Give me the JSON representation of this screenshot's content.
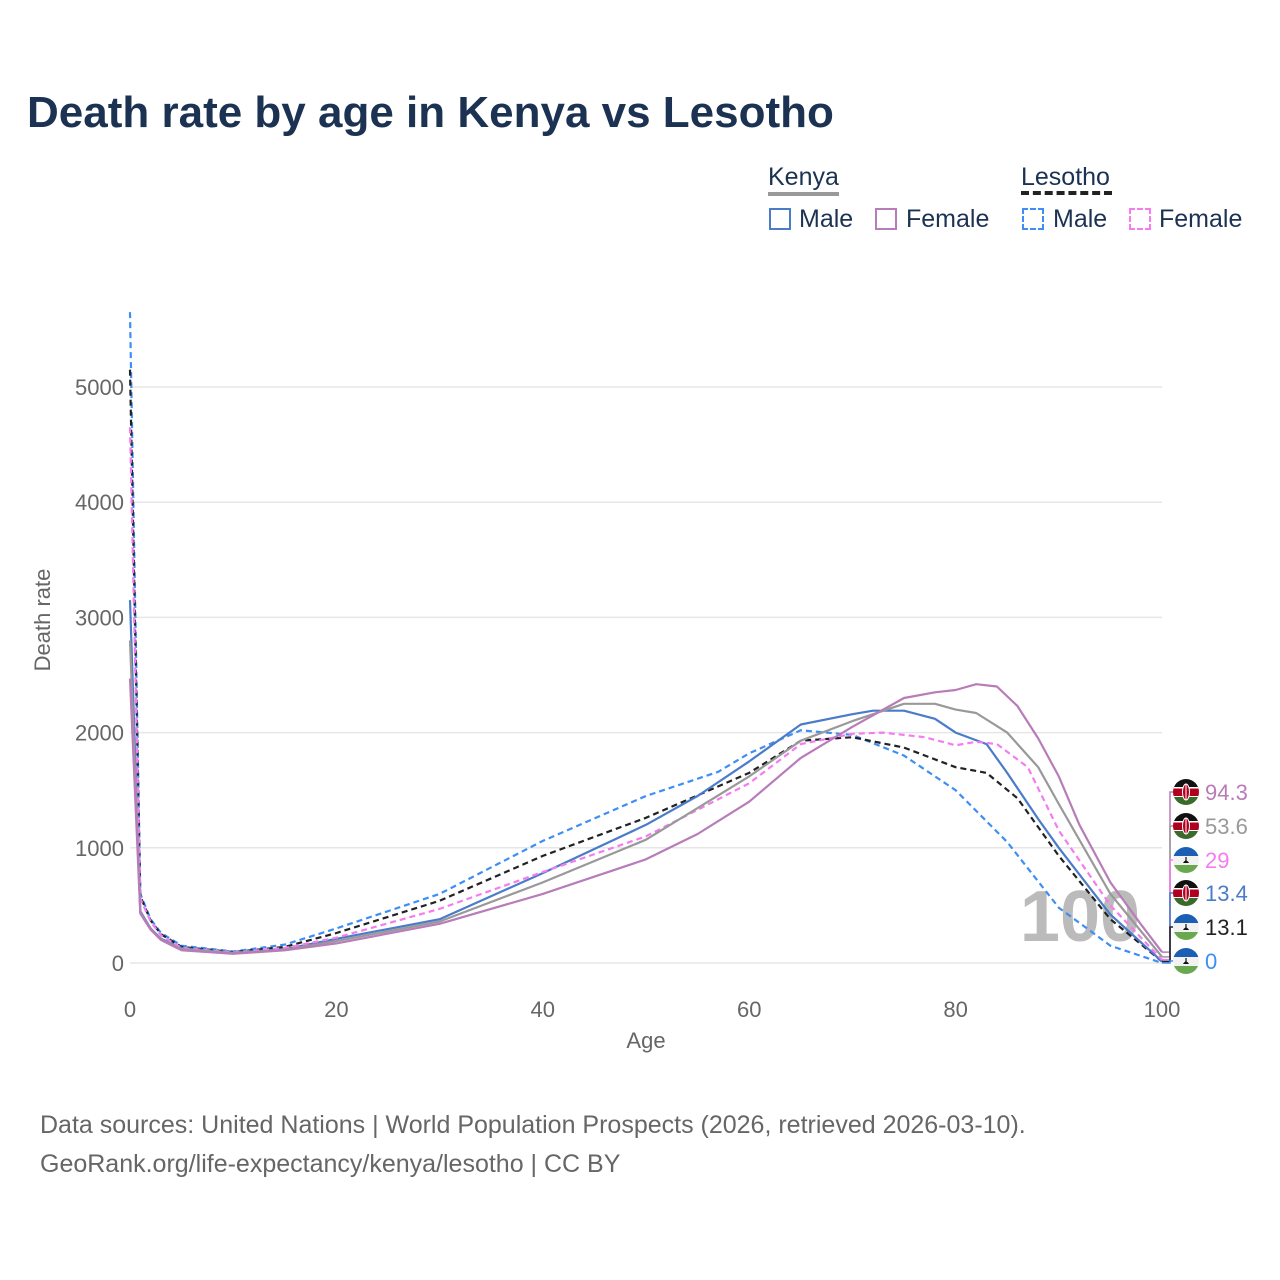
{
  "title": "Death rate by age in Kenya vs Lesotho",
  "legend": {
    "groups": [
      {
        "label": "Kenya",
        "line_color": "#999999",
        "dash": false,
        "items": [
          {
            "label": "Male",
            "color": "#4a7cc9"
          },
          {
            "label": "Female",
            "color": "#b87cb8"
          }
        ]
      },
      {
        "label": "Lesotho",
        "line_color": "#222222",
        "dash": true,
        "items": [
          {
            "label": "Male",
            "color": "#3d8ef5"
          },
          {
            "label": "Female",
            "color": "#f47cf0"
          }
        ]
      }
    ]
  },
  "source": {
    "line1": "Data sources: United Nations | World Population Prospects (2026, retrieved 2026-03-10).",
    "line2": "GeoRank.org/life-expectancy/kenya/lesotho | CC BY"
  },
  "chart_data": {
    "type": "line",
    "title": "Death rate by age in Kenya vs Lesotho",
    "xlabel": "Age",
    "ylabel": "Death rate",
    "xlim": [
      0,
      100
    ],
    "ylim": [
      0,
      5000
    ],
    "xticks": [
      0,
      20,
      40,
      60,
      80,
      100
    ],
    "yticks": [
      0,
      1000,
      2000,
      3000,
      4000,
      5000
    ],
    "grid": true,
    "legend_position": "top-right",
    "current_age_label": "100",
    "series": [
      {
        "name": "Kenya Female",
        "color": "#b87cb8",
        "dash": false,
        "flag": "kenya",
        "end_label": "94.3",
        "points": [
          [
            0,
            2470
          ],
          [
            1,
            430
          ],
          [
            2,
            290
          ],
          [
            3,
            200
          ],
          [
            5,
            110
          ],
          [
            10,
            80
          ],
          [
            15,
            110
          ],
          [
            20,
            170
          ],
          [
            30,
            340
          ],
          [
            40,
            600
          ],
          [
            50,
            900
          ],
          [
            55,
            1120
          ],
          [
            60,
            1400
          ],
          [
            65,
            1780
          ],
          [
            70,
            2050
          ],
          [
            75,
            2300
          ],
          [
            78,
            2350
          ],
          [
            80,
            2370
          ],
          [
            82,
            2420
          ],
          [
            84,
            2400
          ],
          [
            86,
            2230
          ],
          [
            88,
            1950
          ],
          [
            90,
            1620
          ],
          [
            92,
            1200
          ],
          [
            95,
            700
          ],
          [
            98,
            330
          ],
          [
            100,
            94.3
          ]
        ]
      },
      {
        "name": "Kenya",
        "color": "#999999",
        "dash": false,
        "flag": "kenya",
        "end_label": "53.6",
        "points": [
          [
            0,
            2800
          ],
          [
            1,
            440
          ],
          [
            2,
            295
          ],
          [
            3,
            205
          ],
          [
            5,
            120
          ],
          [
            10,
            85
          ],
          [
            15,
            115
          ],
          [
            20,
            190
          ],
          [
            30,
            360
          ],
          [
            40,
            700
          ],
          [
            50,
            1070
          ],
          [
            60,
            1620
          ],
          [
            65,
            1930
          ],
          [
            70,
            2100
          ],
          [
            75,
            2250
          ],
          [
            78,
            2250
          ],
          [
            80,
            2200
          ],
          [
            82,
            2170
          ],
          [
            85,
            2000
          ],
          [
            88,
            1700
          ],
          [
            90,
            1380
          ],
          [
            95,
            600
          ],
          [
            100,
            53.6
          ]
        ]
      },
      {
        "name": "Lesotho Female",
        "color": "#f47cf0",
        "dash": true,
        "flag": "lesotho",
        "end_label": "29",
        "points": [
          [
            0,
            4650
          ],
          [
            1,
            560
          ],
          [
            2,
            360
          ],
          [
            3,
            240
          ],
          [
            5,
            130
          ],
          [
            10,
            90
          ],
          [
            15,
            130
          ],
          [
            20,
            220
          ],
          [
            30,
            470
          ],
          [
            40,
            790
          ],
          [
            50,
            1100
          ],
          [
            60,
            1560
          ],
          [
            65,
            1900
          ],
          [
            70,
            1990
          ],
          [
            73,
            2000
          ],
          [
            77,
            1960
          ],
          [
            80,
            1890
          ],
          [
            82,
            1920
          ],
          [
            84,
            1900
          ],
          [
            87,
            1700
          ],
          [
            90,
            1150
          ],
          [
            95,
            500
          ],
          [
            100,
            29
          ]
        ]
      },
      {
        "name": "Kenya Male",
        "color": "#4a7cc9",
        "dash": false,
        "flag": "kenya",
        "end_label": "13.4",
        "points": [
          [
            0,
            3150
          ],
          [
            1,
            450
          ],
          [
            2,
            300
          ],
          [
            3,
            210
          ],
          [
            5,
            130
          ],
          [
            10,
            90
          ],
          [
            15,
            120
          ],
          [
            20,
            210
          ],
          [
            30,
            380
          ],
          [
            40,
            780
          ],
          [
            50,
            1200
          ],
          [
            55,
            1450
          ],
          [
            60,
            1750
          ],
          [
            65,
            2070
          ],
          [
            70,
            2160
          ],
          [
            72,
            2190
          ],
          [
            75,
            2190
          ],
          [
            78,
            2120
          ],
          [
            80,
            2000
          ],
          [
            83,
            1900
          ],
          [
            85,
            1650
          ],
          [
            88,
            1250
          ],
          [
            90,
            1000
          ],
          [
            95,
            420
          ],
          [
            100,
            13.4
          ]
        ]
      },
      {
        "name": "Lesotho",
        "color": "#222222",
        "dash": true,
        "flag": "lesotho",
        "end_label": "13.1",
        "points": [
          [
            0,
            5150
          ],
          [
            1,
            580
          ],
          [
            2,
            370
          ],
          [
            3,
            250
          ],
          [
            5,
            140
          ],
          [
            10,
            95
          ],
          [
            15,
            140
          ],
          [
            20,
            260
          ],
          [
            30,
            540
          ],
          [
            40,
            930
          ],
          [
            50,
            1260
          ],
          [
            60,
            1650
          ],
          [
            65,
            1930
          ],
          [
            70,
            1960
          ],
          [
            75,
            1870
          ],
          [
            80,
            1700
          ],
          [
            83,
            1650
          ],
          [
            86,
            1430
          ],
          [
            90,
            930
          ],
          [
            95,
            380
          ],
          [
            100,
            13.1
          ]
        ]
      },
      {
        "name": "Lesotho Male",
        "color": "#3d8ef5",
        "dash": true,
        "flag": "lesotho",
        "end_label": "0",
        "points": [
          [
            0,
            5650
          ],
          [
            1,
            600
          ],
          [
            2,
            380
          ],
          [
            3,
            260
          ],
          [
            5,
            150
          ],
          [
            10,
            100
          ],
          [
            15,
            160
          ],
          [
            20,
            300
          ],
          [
            30,
            600
          ],
          [
            40,
            1060
          ],
          [
            50,
            1450
          ],
          [
            57,
            1660
          ],
          [
            60,
            1820
          ],
          [
            65,
            2020
          ],
          [
            70,
            1980
          ],
          [
            75,
            1800
          ],
          [
            80,
            1500
          ],
          [
            85,
            1050
          ],
          [
            90,
            480
          ],
          [
            95,
            150
          ],
          [
            100,
            0
          ]
        ]
      }
    ]
  }
}
